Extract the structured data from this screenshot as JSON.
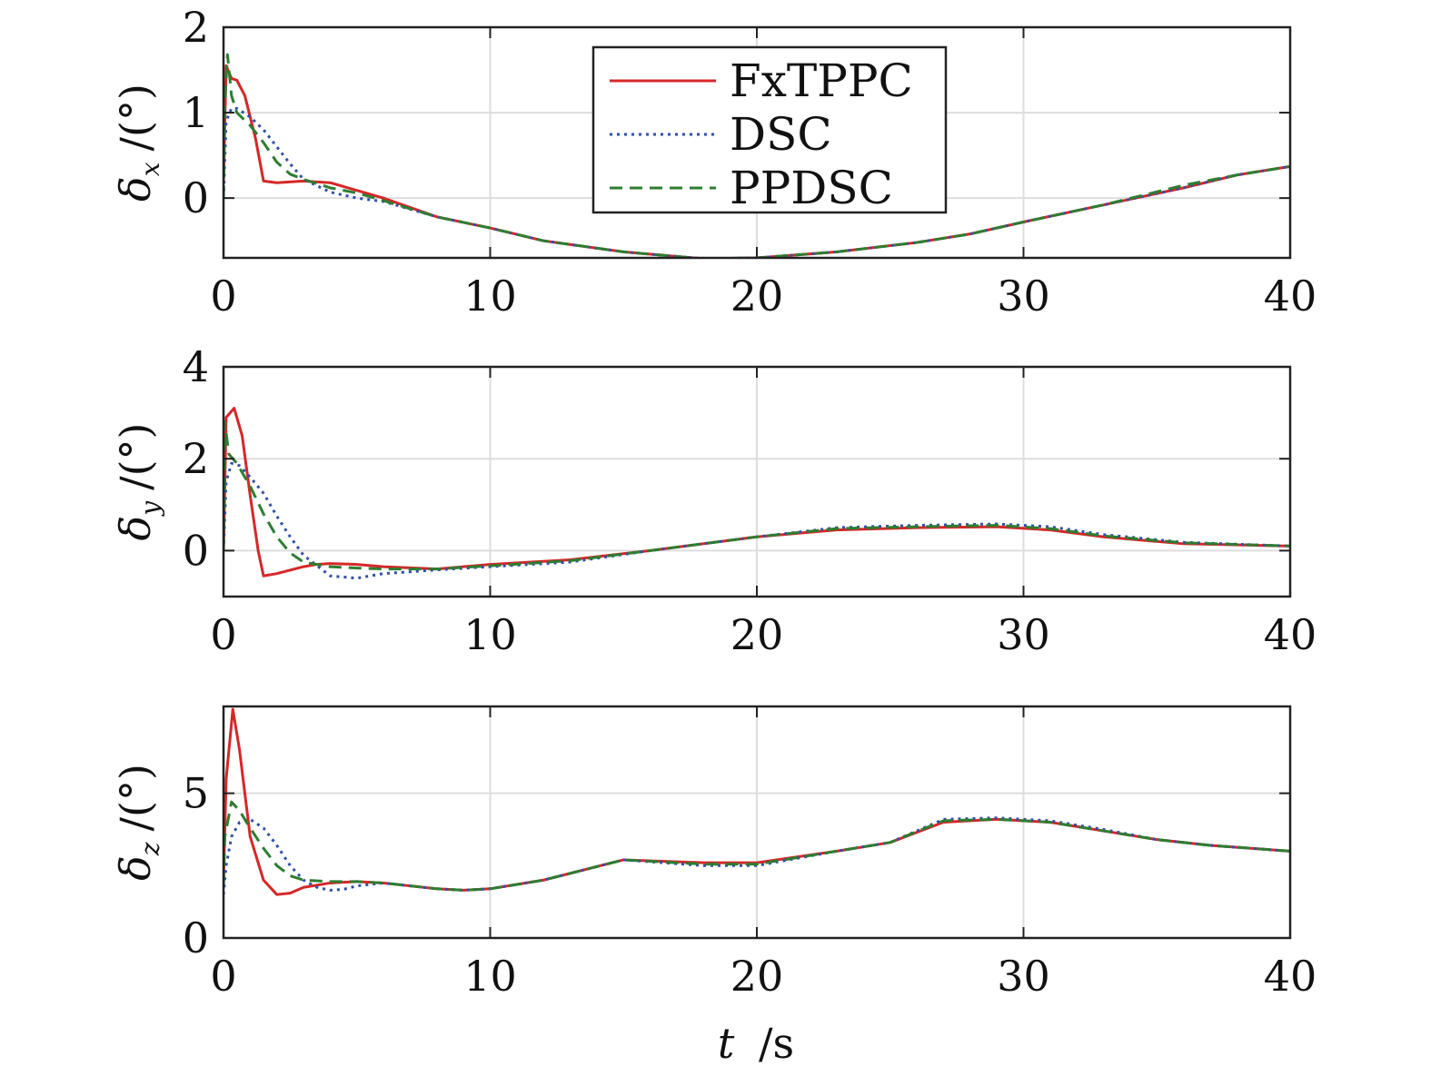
{
  "colors": {
    "FxTPPC": "#d62728",
    "DSC": "#2f4fa8",
    "PPDSC": "#2e7d32"
  },
  "legend": {
    "entries": [
      "FxTPPC",
      "DSC",
      "PPDSC"
    ],
    "placement": "top-center of first subplot"
  },
  "chart_data": [
    {
      "type": "line",
      "ylabel_symbol": "δ",
      "ylabel_sub": "x",
      "ylabel_unit": "/(°)",
      "xlim": [
        0,
        40
      ],
      "ylim": [
        -0.7,
        2
      ],
      "xticks": [
        0,
        10,
        20,
        30,
        40
      ],
      "yticks": [
        0,
        1,
        2
      ],
      "grid": true,
      "series": [
        {
          "name": "FxTPPC",
          "style": "solid",
          "x": [
            0,
            0.1,
            0.3,
            0.5,
            0.8,
            1.2,
            1.5,
            2,
            3,
            4,
            6,
            8,
            10,
            12,
            15,
            18,
            20,
            23,
            26,
            28,
            30,
            33,
            36,
            38,
            40
          ],
          "y": [
            0.2,
            1.55,
            1.4,
            1.38,
            1.2,
            0.7,
            0.2,
            0.18,
            0.2,
            0.18,
            0.0,
            -0.22,
            -0.35,
            -0.5,
            -0.63,
            -0.71,
            -0.7,
            -0.63,
            -0.52,
            -0.42,
            -0.28,
            -0.08,
            0.12,
            0.27,
            0.37
          ]
        },
        {
          "name": "DSC",
          "style": "dotted",
          "x": [
            0,
            0.1,
            0.3,
            0.5,
            1,
            1.5,
            2,
            2.5,
            3,
            4,
            5,
            6,
            8,
            10,
            12,
            15,
            18,
            20,
            23,
            26,
            28,
            30,
            33,
            36,
            38,
            40
          ],
          "y": [
            0.0,
            0.9,
            1.05,
            1.05,
            0.95,
            0.8,
            0.6,
            0.4,
            0.22,
            0.07,
            0.0,
            -0.04,
            -0.22,
            -0.35,
            -0.5,
            -0.63,
            -0.71,
            -0.7,
            -0.63,
            -0.52,
            -0.42,
            -0.28,
            -0.08,
            0.12,
            0.27,
            0.37
          ]
        },
        {
          "name": "PPDSC",
          "style": "dashed",
          "x": [
            0,
            0.05,
            0.15,
            0.3,
            0.5,
            1,
            1.5,
            2,
            2.5,
            3,
            4,
            5,
            6,
            8,
            10,
            12,
            15,
            18,
            20,
            23,
            26,
            28,
            30,
            33,
            36,
            38,
            40
          ],
          "y": [
            0.0,
            1.1,
            1.68,
            1.2,
            1.0,
            0.85,
            0.65,
            0.42,
            0.28,
            0.22,
            0.12,
            0.06,
            -0.03,
            -0.22,
            -0.35,
            -0.5,
            -0.63,
            -0.71,
            -0.7,
            -0.63,
            -0.52,
            -0.42,
            -0.28,
            -0.08,
            0.15,
            0.27,
            0.37
          ]
        }
      ]
    },
    {
      "type": "line",
      "ylabel_symbol": "δ",
      "ylabel_sub": "y",
      "ylabel_unit": "/(°)",
      "xlim": [
        0,
        40
      ],
      "ylim": [
        -1,
        4
      ],
      "xticks": [
        0,
        10,
        20,
        30,
        40
      ],
      "yticks": [
        0,
        2,
        4
      ],
      "grid": true,
      "series": [
        {
          "name": "FxTPPC",
          "style": "solid",
          "x": [
            0,
            0.1,
            0.4,
            0.7,
            1,
            1.3,
            1.5,
            2,
            3,
            3.5,
            4,
            5,
            6,
            8,
            10,
            13,
            16,
            20,
            23,
            26,
            29,
            31,
            33,
            36,
            40
          ],
          "y": [
            0.0,
            2.9,
            3.1,
            2.5,
            1.2,
            0.0,
            -0.55,
            -0.5,
            -0.35,
            -0.3,
            -0.28,
            -0.3,
            -0.35,
            -0.4,
            -0.3,
            -0.2,
            0.0,
            0.3,
            0.45,
            0.5,
            0.52,
            0.45,
            0.3,
            0.15,
            0.1
          ]
        },
        {
          "name": "DSC",
          "style": "dotted",
          "x": [
            0,
            0.1,
            0.3,
            0.6,
            1,
            1.5,
            2,
            2.5,
            3,
            4,
            5,
            6,
            8,
            10,
            13,
            16,
            20,
            23,
            26,
            29,
            31,
            33,
            36,
            40
          ],
          "y": [
            0.0,
            1.5,
            1.9,
            1.85,
            1.6,
            1.25,
            0.75,
            0.3,
            -0.1,
            -0.55,
            -0.6,
            -0.5,
            -0.42,
            -0.35,
            -0.25,
            0.0,
            0.3,
            0.5,
            0.55,
            0.58,
            0.52,
            0.35,
            0.18,
            0.1
          ]
        },
        {
          "name": "PPDSC",
          "style": "dashed",
          "x": [
            0,
            0.05,
            0.2,
            0.5,
            1,
            1.5,
            2,
            2.5,
            3,
            4,
            5,
            6,
            8,
            10,
            13,
            16,
            20,
            23,
            26,
            29,
            31,
            33,
            36,
            40
          ],
          "y": [
            0.0,
            2.8,
            2.1,
            1.9,
            1.4,
            0.8,
            0.3,
            -0.05,
            -0.25,
            -0.35,
            -0.38,
            -0.4,
            -0.4,
            -0.33,
            -0.22,
            0.0,
            0.3,
            0.48,
            0.52,
            0.55,
            0.48,
            0.32,
            0.17,
            0.1
          ]
        }
      ]
    },
    {
      "type": "line",
      "ylabel_symbol": "δ",
      "ylabel_sub": "z",
      "ylabel_unit": "/(°)",
      "xlim": [
        0,
        40
      ],
      "ylim": [
        0,
        8
      ],
      "xticks": [
        0,
        10,
        20,
        30,
        40
      ],
      "yticks": [
        0,
        5
      ],
      "grid": true,
      "series": [
        {
          "name": "FxTPPC",
          "style": "solid",
          "x": [
            0,
            0.1,
            0.35,
            0.6,
            1,
            1.5,
            2,
            2.5,
            3,
            4,
            5,
            6,
            8,
            9,
            10,
            12,
            15,
            18,
            20,
            23,
            25,
            27,
            29,
            31,
            33,
            35,
            37,
            40
          ],
          "y": [
            2.0,
            5.5,
            7.9,
            6.5,
            3.5,
            2.0,
            1.5,
            1.55,
            1.75,
            1.9,
            1.95,
            1.9,
            1.7,
            1.65,
            1.7,
            2.0,
            2.7,
            2.6,
            2.6,
            3.0,
            3.3,
            4.0,
            4.1,
            4.0,
            3.7,
            3.4,
            3.2,
            3.0
          ]
        },
        {
          "name": "DSC",
          "style": "dotted",
          "x": [
            0,
            0.1,
            0.3,
            0.6,
            1,
            1.5,
            2,
            2.5,
            3,
            3.5,
            4,
            4.5,
            5,
            6,
            8,
            9,
            10,
            12,
            15,
            18,
            20,
            23,
            25,
            27,
            29,
            31,
            33,
            35,
            37,
            40
          ],
          "y": [
            1.5,
            2.5,
            3.5,
            4.0,
            4.1,
            3.8,
            3.2,
            2.5,
            2.0,
            1.75,
            1.65,
            1.68,
            1.8,
            1.9,
            1.7,
            1.65,
            1.7,
            2.0,
            2.7,
            2.5,
            2.5,
            3.0,
            3.3,
            4.1,
            4.15,
            4.05,
            3.75,
            3.4,
            3.2,
            3.0
          ]
        },
        {
          "name": "PPDSC",
          "style": "dashed",
          "x": [
            0,
            0.05,
            0.3,
            0.6,
            1,
            1.5,
            2,
            2.5,
            3,
            4,
            5,
            6,
            8,
            9,
            10,
            12,
            15,
            18,
            20,
            23,
            25,
            27,
            29,
            31,
            33,
            35,
            37,
            40
          ],
          "y": [
            1.8,
            3.5,
            4.7,
            4.4,
            3.8,
            3.1,
            2.5,
            2.15,
            2.0,
            1.95,
            1.95,
            1.9,
            1.7,
            1.65,
            1.7,
            2.0,
            2.7,
            2.55,
            2.55,
            3.0,
            3.3,
            4.05,
            4.1,
            4.0,
            3.7,
            3.4,
            3.2,
            3.0
          ]
        }
      ]
    }
  ],
  "xlabel_symbol": "t",
  "xlabel_unit": "/s"
}
